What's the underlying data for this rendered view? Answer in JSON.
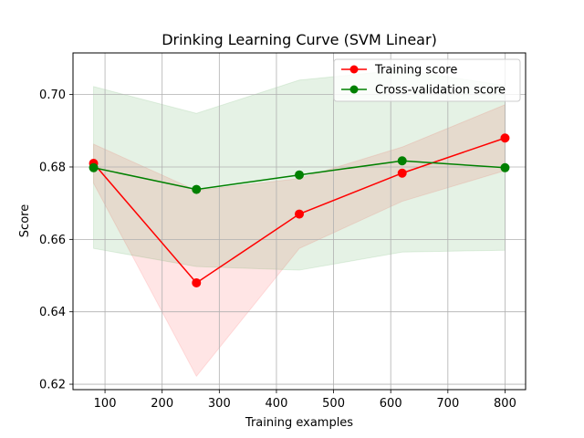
{
  "chart_data": {
    "type": "line",
    "title": "Drinking Learning Curve (SVM Linear)",
    "xlabel": "Training examples",
    "ylabel": "Score",
    "xlim": [
      44,
      836
    ],
    "ylim": [
      0.6185,
      0.7115
    ],
    "xticks": [
      100,
      200,
      300,
      400,
      500,
      600,
      700,
      800
    ],
    "yticks": [
      0.62,
      0.64,
      0.66,
      0.68,
      0.7
    ],
    "xtick_labels": [
      "100",
      "200",
      "300",
      "400",
      "500",
      "600",
      "700",
      "800"
    ],
    "ytick_labels": [
      "0.62",
      "0.64",
      "0.66",
      "0.68",
      "0.70"
    ],
    "grid": true,
    "legend_position": "top-right",
    "x": [
      80,
      260,
      440,
      620,
      800
    ],
    "series": [
      {
        "name": "Training score",
        "color": "#ff0000",
        "band_color": "#ff0000",
        "values": [
          0.681,
          0.648,
          0.667,
          0.6783,
          0.688
        ],
        "band_lower": [
          0.6755,
          0.6222,
          0.6575,
          0.6705,
          0.679
        ],
        "band_upper": [
          0.6863,
          0.6735,
          0.6768,
          0.6855,
          0.6972
        ]
      },
      {
        "name": "Cross-validation score",
        "color": "#008000",
        "band_color": "#008000",
        "values": [
          0.6798,
          0.6738,
          0.6778,
          0.6817,
          0.6798
        ],
        "band_lower": [
          0.6575,
          0.6525,
          0.6515,
          0.6565,
          0.657
        ],
        "band_upper": [
          0.7022,
          0.6948,
          0.704,
          0.7068,
          0.7025
        ]
      }
    ]
  }
}
